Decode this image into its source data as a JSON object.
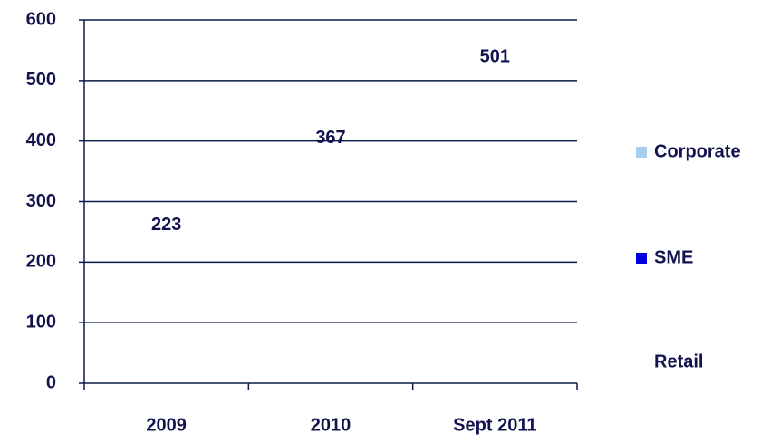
{
  "chart_data": {
    "type": "bar",
    "categories": [
      "2009",
      "2010",
      "Sept 2011"
    ],
    "values": [
      223,
      367,
      501
    ],
    "legend": [
      {
        "name": "Corporate",
        "color": "#a9cdf0"
      },
      {
        "name": "SME",
        "color": "#0000e0"
      },
      {
        "name": "Retail",
        "color": "#ffffff"
      }
    ],
    "ylim": [
      0,
      600
    ],
    "yticks": [
      0,
      100,
      200,
      300,
      400,
      500,
      600
    ],
    "grid": true
  }
}
